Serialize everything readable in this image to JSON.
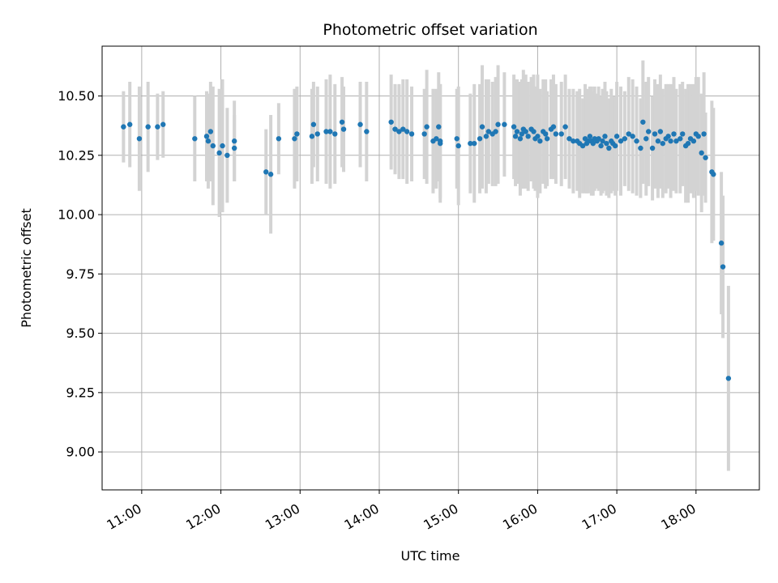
{
  "chart_data": {
    "type": "scatter",
    "title": "Photometric offset variation",
    "xlabel": "UTC time",
    "ylabel": "Photometric offset",
    "x_unit": "UTC hour",
    "xlim": [
      10.5,
      18.8
    ],
    "ylim": [
      8.84,
      10.71
    ],
    "xticks": [
      11,
      12,
      13,
      14,
      15,
      16,
      17,
      18
    ],
    "xtick_labels": [
      "11:00",
      "12:00",
      "13:00",
      "14:00",
      "15:00",
      "16:00",
      "17:00",
      "18:00"
    ],
    "yticks": [
      9.0,
      9.25,
      9.5,
      9.75,
      10.0,
      10.25,
      10.5
    ],
    "ytick_labels": [
      "9.00",
      "9.25",
      "9.50",
      "9.75",
      "10.00",
      "10.25",
      "10.50"
    ],
    "grid": true,
    "marker_color": "#1f77b4",
    "errorbar_color": "#d3d3d3",
    "series": [
      {
        "x": [
          10.77,
          10.85,
          10.97,
          11.08,
          11.2,
          11.27,
          11.67,
          11.82,
          11.84,
          11.87,
          11.9,
          11.98,
          12.02,
          12.08,
          12.17,
          12.17,
          12.57,
          12.63,
          12.73,
          12.93,
          12.96,
          13.15,
          13.17,
          13.22,
          13.33,
          13.38,
          13.44,
          13.53,
          13.55,
          13.76,
          13.84,
          14.15,
          14.2,
          14.25,
          14.3,
          14.35,
          14.41,
          14.57,
          14.6,
          14.68,
          14.72,
          14.75,
          14.77,
          14.77,
          14.98,
          15.0,
          15.15,
          15.2,
          15.27,
          15.3,
          15.35,
          15.38,
          15.43,
          15.47,
          15.5,
          15.58,
          15.7,
          15.72,
          15.74,
          15.78,
          15.8,
          15.82,
          15.85,
          15.88,
          15.92,
          15.95,
          15.97,
          16.0,
          16.03,
          16.07,
          16.1,
          16.12,
          16.17,
          16.2,
          16.23,
          16.3,
          16.35,
          16.4,
          16.45,
          16.5,
          16.53,
          16.57,
          16.6,
          16.62,
          16.64,
          16.66,
          16.68,
          16.7,
          16.72,
          16.75,
          16.77,
          16.8,
          16.82,
          16.85,
          16.87,
          16.9,
          16.93,
          16.95,
          16.98,
          17.0,
          17.05,
          17.1,
          17.15,
          17.2,
          17.25,
          17.3,
          17.33,
          17.37,
          17.4,
          17.45,
          17.48,
          17.52,
          17.55,
          17.58,
          17.62,
          17.65,
          17.68,
          17.72,
          17.75,
          17.8,
          17.83,
          17.87,
          17.9,
          17.93,
          17.97,
          18.0,
          18.03,
          18.07,
          18.1,
          18.12,
          18.2,
          18.22,
          18.32,
          18.34,
          18.41
        ],
        "y": [
          10.37,
          10.38,
          10.32,
          10.37,
          10.37,
          10.38,
          10.32,
          10.33,
          10.31,
          10.35,
          10.29,
          10.26,
          10.29,
          10.25,
          10.31,
          10.28,
          10.18,
          10.17,
          10.32,
          10.32,
          10.34,
          10.33,
          10.38,
          10.34,
          10.35,
          10.35,
          10.34,
          10.39,
          10.36,
          10.38,
          10.35,
          10.39,
          10.36,
          10.35,
          10.36,
          10.35,
          10.34,
          10.34,
          10.37,
          10.31,
          10.32,
          10.37,
          10.3,
          10.31,
          10.32,
          10.29,
          10.3,
          10.3,
          10.32,
          10.37,
          10.33,
          10.35,
          10.34,
          10.35,
          10.38,
          10.38,
          10.37,
          10.33,
          10.35,
          10.32,
          10.34,
          10.36,
          10.35,
          10.33,
          10.36,
          10.35,
          10.32,
          10.33,
          10.31,
          10.35,
          10.34,
          10.32,
          10.36,
          10.37,
          10.34,
          10.34,
          10.37,
          10.32,
          10.31,
          10.31,
          10.3,
          10.29,
          10.32,
          10.3,
          10.31,
          10.33,
          10.31,
          10.3,
          10.32,
          10.31,
          10.32,
          10.29,
          10.31,
          10.33,
          10.3,
          10.28,
          10.31,
          10.3,
          10.29,
          10.33,
          10.31,
          10.32,
          10.34,
          10.33,
          10.31,
          10.28,
          10.39,
          10.32,
          10.35,
          10.28,
          10.34,
          10.31,
          10.35,
          10.3,
          10.32,
          10.33,
          10.31,
          10.34,
          10.31,
          10.32,
          10.34,
          10.29,
          10.3,
          10.32,
          10.31,
          10.34,
          10.33,
          10.26,
          10.34,
          10.24,
          10.18,
          10.17,
          9.88,
          9.78,
          9.31
        ],
        "yerr": [
          0.15,
          0.18,
          0.22,
          0.19,
          0.14,
          0.14,
          0.18,
          0.19,
          0.2,
          0.21,
          0.25,
          0.27,
          0.28,
          0.2,
          0.17,
          0.14,
          0.18,
          0.25,
          0.15,
          0.21,
          0.2,
          0.2,
          0.18,
          0.2,
          0.22,
          0.24,
          0.21,
          0.19,
          0.18,
          0.18,
          0.21,
          0.2,
          0.19,
          0.2,
          0.21,
          0.22,
          0.2,
          0.19,
          0.24,
          0.22,
          0.21,
          0.23,
          0.25,
          0.24,
          0.21,
          0.25,
          0.21,
          0.25,
          0.23,
          0.26,
          0.24,
          0.22,
          0.22,
          0.23,
          0.25,
          0.22,
          0.22,
          0.21,
          0.22,
          0.24,
          0.23,
          0.25,
          0.24,
          0.23,
          0.22,
          0.24,
          0.22,
          0.26,
          0.22,
          0.22,
          0.23,
          0.2,
          0.21,
          0.22,
          0.21,
          0.22,
          0.22,
          0.21,
          0.22,
          0.21,
          0.23,
          0.2,
          0.23,
          0.21,
          0.22,
          0.21,
          0.23,
          0.22,
          0.22,
          0.2,
          0.22,
          0.21,
          0.22,
          0.23,
          0.22,
          0.21,
          0.22,
          0.2,
          0.21,
          0.23,
          0.23,
          0.2,
          0.24,
          0.24,
          0.23,
          0.21,
          0.26,
          0.24,
          0.23,
          0.22,
          0.23,
          0.24,
          0.24,
          0.23,
          0.23,
          0.22,
          0.24,
          0.24,
          0.22,
          0.23,
          0.22,
          0.24,
          0.25,
          0.23,
          0.24,
          0.24,
          0.25,
          0.25,
          0.26,
          0.19,
          0.3,
          0.28,
          0.3,
          0.3,
          0.39
        ]
      }
    ]
  }
}
